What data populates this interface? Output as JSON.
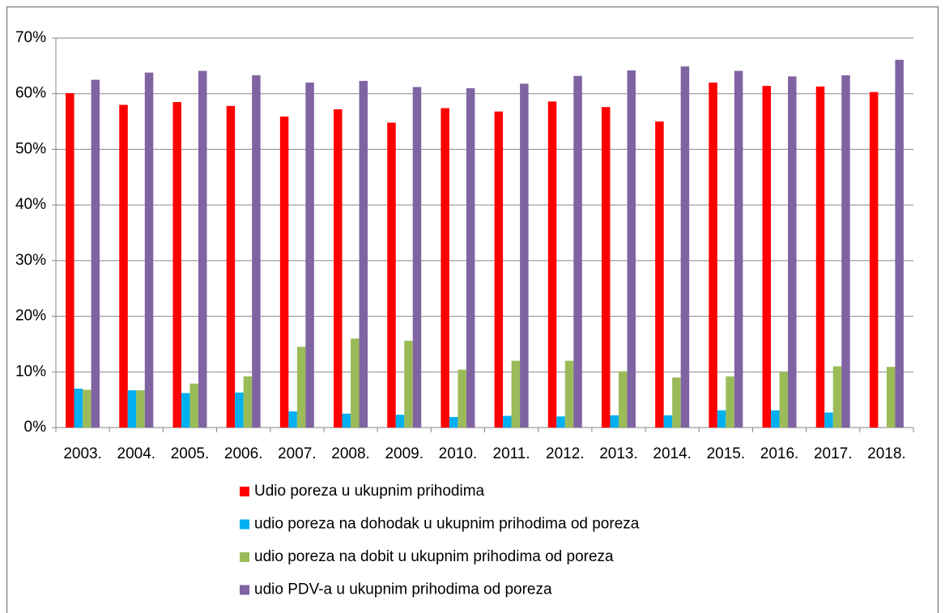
{
  "chart_data": {
    "type": "bar",
    "categories": [
      "2003.",
      "2004.",
      "2005.",
      "2006.",
      "2007.",
      "2008.",
      "2009.",
      "2010.",
      "2011.",
      "2012.",
      "2013.",
      "2014.",
      "2015.",
      "2016.",
      "2017.",
      "2018."
    ],
    "series": [
      {
        "name": "Udio poreza u ukupnim prihodima",
        "color": "#ff0000",
        "values": [
          60.1,
          58.0,
          58.5,
          57.8,
          55.9,
          57.2,
          54.8,
          57.4,
          56.8,
          58.6,
          57.6,
          55.0,
          62.0,
          61.4,
          61.3,
          60.3
        ]
      },
      {
        "name": "udio poreza na dohodak u ukupnim prihodima od poreza",
        "color": "#00b0f0",
        "values": [
          7.0,
          6.7,
          6.2,
          6.3,
          2.9,
          2.5,
          2.3,
          1.9,
          2.1,
          2.0,
          2.2,
          2.2,
          3.1,
          3.1,
          2.7,
          null
        ]
      },
      {
        "name": "udio poreza na dobit u ukupnim prihodima od poreza",
        "color": "#9bbb59",
        "values": [
          6.8,
          6.7,
          7.9,
          9.2,
          14.5,
          16.0,
          15.6,
          10.4,
          12.0,
          12.0,
          10.1,
          9.0,
          9.2,
          10.0,
          11.0,
          10.9
        ]
      },
      {
        "name": "udio PDV-a u ukupnim prihodima od poreza",
        "color": "#8064a2",
        "values": [
          62.5,
          63.8,
          64.1,
          63.3,
          62.0,
          62.3,
          61.2,
          61.0,
          61.8,
          63.2,
          64.2,
          64.9,
          64.1,
          63.1,
          63.3,
          66.1
        ]
      }
    ],
    "ylim": [
      0,
      70
    ],
    "yticks": [
      {
        "value": 0,
        "label": "0%"
      },
      {
        "value": 10,
        "label": "10%"
      },
      {
        "value": 20,
        "label": "20%"
      },
      {
        "value": 30,
        "label": "30%"
      },
      {
        "value": 40,
        "label": "40%"
      },
      {
        "value": 50,
        "label": "50%"
      },
      {
        "value": 60,
        "label": "60%"
      },
      {
        "value": 70,
        "label": "70%"
      }
    ],
    "grid": true
  }
}
